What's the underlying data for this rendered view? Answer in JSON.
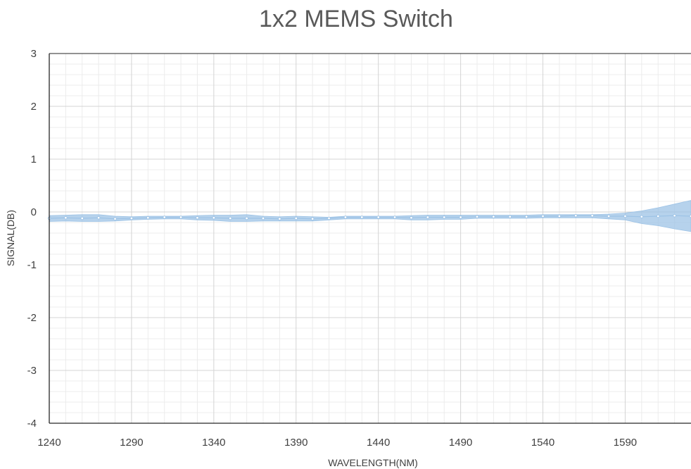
{
  "chart_data": {
    "type": "line",
    "title": "1x2 MEMS Switch",
    "xlabel": "WAVELENGTH(NM)",
    "ylabel": "SIGNAL(DB)",
    "xlim": [
      1240,
      1630
    ],
    "ylim": [
      -4,
      3
    ],
    "x_ticks": [
      1240,
      1290,
      1340,
      1390,
      1440,
      1490,
      1540,
      1590
    ],
    "y_ticks": [
      -4,
      -3,
      -2,
      -1,
      0,
      1,
      2,
      3
    ],
    "grid": true,
    "series_color": "#9DC3E6",
    "series": [
      {
        "x": [
          1240,
          1250,
          1260,
          1270,
          1280,
          1290,
          1300,
          1310,
          1320,
          1330,
          1340,
          1350,
          1360,
          1370,
          1380,
          1390,
          1400,
          1410,
          1420,
          1430,
          1440,
          1450,
          1460,
          1470,
          1480,
          1490,
          1500,
          1510,
          1520,
          1530,
          1540,
          1550,
          1560,
          1570,
          1580,
          1590,
          1600,
          1610,
          1620,
          1630
        ],
        "y": [
          -0.12,
          -0.11,
          -0.12,
          -0.11,
          -0.13,
          -0.12,
          -0.11,
          -0.1,
          -0.1,
          -0.11,
          -0.11,
          -0.12,
          -0.12,
          -0.12,
          -0.13,
          -0.12,
          -0.13,
          -0.12,
          -0.1,
          -0.1,
          -0.1,
          -0.1,
          -0.11,
          -0.1,
          -0.1,
          -0.1,
          -0.09,
          -0.09,
          -0.09,
          -0.09,
          -0.08,
          -0.08,
          -0.07,
          -0.07,
          -0.08,
          -0.08,
          -0.09,
          -0.08,
          -0.07,
          -0.08
        ],
        "y_min": [
          -0.18,
          -0.17,
          -0.18,
          -0.18,
          -0.17,
          -0.15,
          -0.14,
          -0.13,
          -0.13,
          -0.15,
          -0.16,
          -0.18,
          -0.18,
          -0.17,
          -0.17,
          -0.17,
          -0.17,
          -0.15,
          -0.13,
          -0.13,
          -0.13,
          -0.13,
          -0.15,
          -0.15,
          -0.14,
          -0.14,
          -0.12,
          -0.12,
          -0.12,
          -0.12,
          -0.11,
          -0.11,
          -0.11,
          -0.11,
          -0.13,
          -0.15,
          -0.22,
          -0.26,
          -0.32,
          -0.37
        ],
        "y_max": [
          -0.07,
          -0.06,
          -0.05,
          -0.05,
          -0.08,
          -0.09,
          -0.08,
          -0.08,
          -0.08,
          -0.07,
          -0.06,
          -0.06,
          -0.05,
          -0.08,
          -0.09,
          -0.08,
          -0.09,
          -0.1,
          -0.08,
          -0.08,
          -0.08,
          -0.08,
          -0.07,
          -0.06,
          -0.06,
          -0.06,
          -0.06,
          -0.06,
          -0.06,
          -0.06,
          -0.05,
          -0.05,
          -0.05,
          -0.05,
          -0.04,
          -0.02,
          0.02,
          0.08,
          0.15,
          0.22
        ]
      }
    ]
  }
}
